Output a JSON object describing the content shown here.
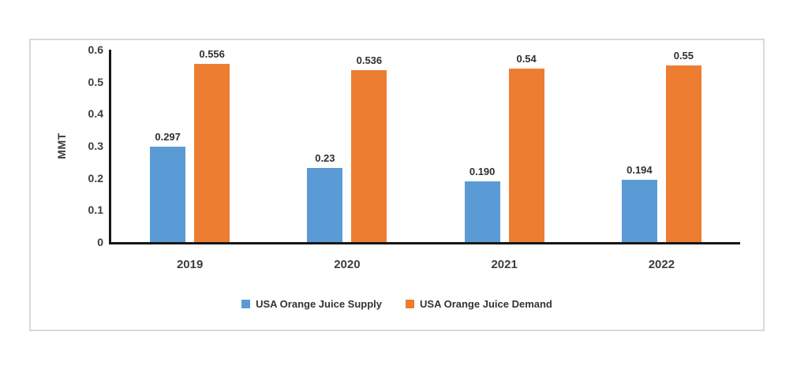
{
  "chart_data": {
    "type": "bar",
    "title": "",
    "xlabel": "",
    "ylabel": "MMT",
    "ymin": 0,
    "ymax": 0.6,
    "grid": false,
    "legend_position": "bottom",
    "axis_color": "#161616",
    "panel_border_color": "#d9d9d9",
    "text_color": "#3d3d3d",
    "yticks": [
      {
        "value": 0,
        "label": "0"
      },
      {
        "value": 0.1,
        "label": "0.1"
      },
      {
        "value": 0.2,
        "label": "0.2"
      },
      {
        "value": 0.3,
        "label": "0.3"
      },
      {
        "value": 0.4,
        "label": "0.4"
      },
      {
        "value": 0.5,
        "label": "0.5"
      },
      {
        "value": 0.6,
        "label": "0.6"
      }
    ],
    "categories": [
      "2019",
      "2020",
      "2021",
      "2022"
    ],
    "series": [
      {
        "name": "USA Orange Juice Supply",
        "color": "#5B9BD5",
        "values": [
          0.297,
          0.23,
          0.19,
          0.194
        ],
        "labels": [
          "0.297",
          "0.23",
          "0.190",
          "0.194"
        ]
      },
      {
        "name": "USA Orange Juice Demand",
        "color": "#ED7D31",
        "values": [
          0.556,
          0.536,
          0.54,
          0.55
        ],
        "labels": [
          "0.556",
          "0.536",
          "0.54",
          "0.55"
        ]
      }
    ]
  }
}
